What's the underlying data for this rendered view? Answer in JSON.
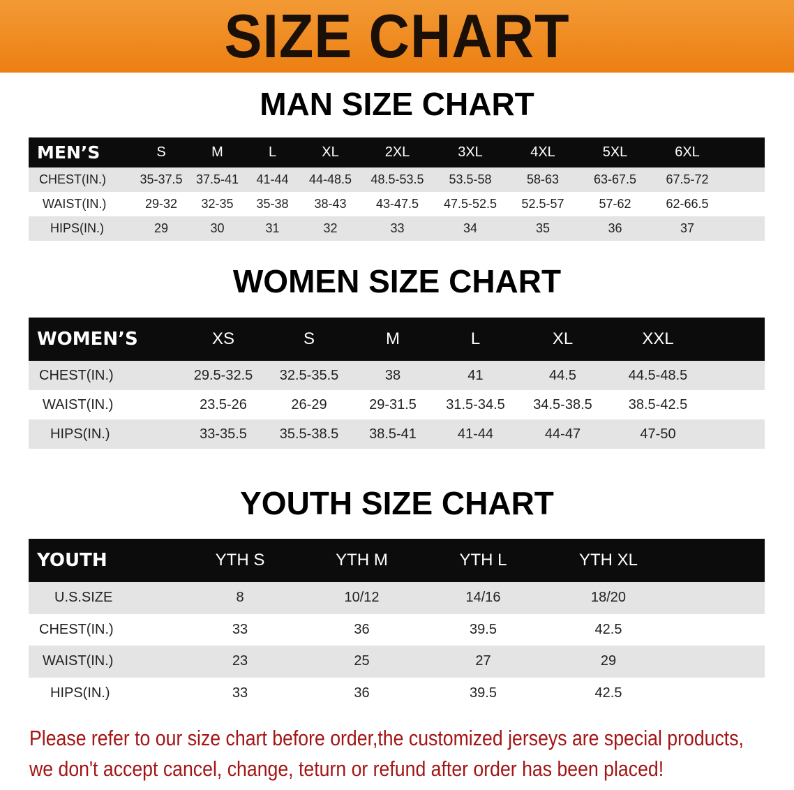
{
  "banner_title": "SIZE CHART",
  "colors": {
    "banner": "#ec7f12",
    "header_bg": "#0c0c0c",
    "row_shade": "#e4e4e4",
    "notice_text": "#a31515"
  },
  "men": {
    "title": "MAN SIZE CHART",
    "corner": "MEN’S",
    "sizes": [
      "S",
      "M",
      "L",
      "XL",
      "2XL",
      "3XL",
      "4XL",
      "5XL",
      "6XL"
    ],
    "rows": [
      {
        "label": "CHEST(IN.)",
        "values": [
          "35-37.5",
          "37.5-41",
          "41-44",
          "44-48.5",
          "48.5-53.5",
          "53.5-58",
          "58-63",
          "63-67.5",
          "67.5-72"
        ]
      },
      {
        "label": "WAIST(IN.)",
        "values": [
          "29-32",
          "32-35",
          "35-38",
          "38-43",
          "43-47.5",
          "47.5-52.5",
          "52.5-57",
          "57-62",
          "62-66.5"
        ]
      },
      {
        "label": "HIPS(IN.)",
        "values": [
          "29",
          "30",
          "31",
          "32",
          "33",
          "34",
          "35",
          "36",
          "37"
        ]
      }
    ]
  },
  "women": {
    "title": "WOMEN SIZE CHART",
    "corner": "WOMEN’S",
    "sizes": [
      "XS",
      "S",
      "M",
      "L",
      "XL",
      "XXL"
    ],
    "rows": [
      {
        "label": "CHEST(IN.)",
        "values": [
          "29.5-32.5",
          "32.5-35.5",
          "38",
          "41",
          "44.5",
          "44.5-48.5"
        ]
      },
      {
        "label": "WAIST(IN.)",
        "values": [
          "23.5-26",
          "26-29",
          "29-31.5",
          "31.5-34.5",
          "34.5-38.5",
          "38.5-42.5"
        ]
      },
      {
        "label": "HIPS(IN.)",
        "values": [
          "33-35.5",
          "35.5-38.5",
          "38.5-41",
          "41-44",
          "44-47",
          "47-50"
        ]
      }
    ]
  },
  "youth": {
    "title": "YOUTH SIZE CHART",
    "corner": "YOUTH",
    "sizes": [
      "YTH S",
      "YTH M",
      "YTH L",
      "YTH XL"
    ],
    "rows": [
      {
        "label": "U.S.SIZE",
        "values": [
          "8",
          "10/12",
          "14/16",
          "18/20"
        ]
      },
      {
        "label": "CHEST(IN.)",
        "values": [
          "33",
          "36",
          "39.5",
          "42.5"
        ]
      },
      {
        "label": "WAIST(IN.)",
        "values": [
          "23",
          "25",
          "27",
          "29"
        ]
      },
      {
        "label": "HIPS(IN.)",
        "values": [
          "33",
          "36",
          "39.5",
          "42.5"
        ]
      }
    ]
  },
  "notice": {
    "line1": "Please refer to our size chart before order,the customized jerseys are special products,",
    "line2": "we don't accept cancel, change, teturn or refund after order has been placed!"
  }
}
